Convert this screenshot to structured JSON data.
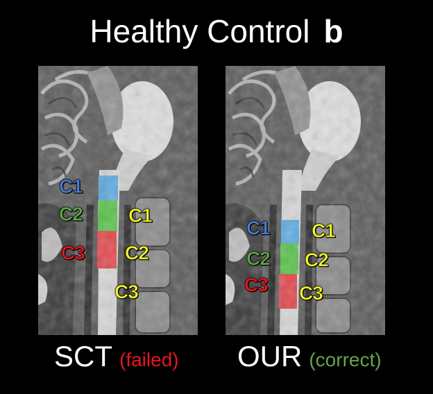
{
  "title": {
    "text": "Healthy Control",
    "panel_letter": "b"
  },
  "left_panel": {
    "method": "SCT",
    "status": "(failed)",
    "spine_labels": [
      "C1",
      "C2",
      "C3"
    ],
    "vertebra_labels": [
      "C1",
      "C2",
      "C3"
    ]
  },
  "right_panel": {
    "method": "OUR",
    "status": "(correct)",
    "spine_labels": [
      "C1",
      "C2",
      "C3"
    ],
    "vertebra_labels": [
      "C1",
      "C2",
      "C3"
    ]
  },
  "colors": {
    "c1_segment": "#5aa9e0",
    "c2_segment": "#5ac24a",
    "c3_segment": "#e2454a",
    "vertebra_text": "#f4f42a",
    "failed": "#e8161e",
    "correct": "#62a845"
  }
}
